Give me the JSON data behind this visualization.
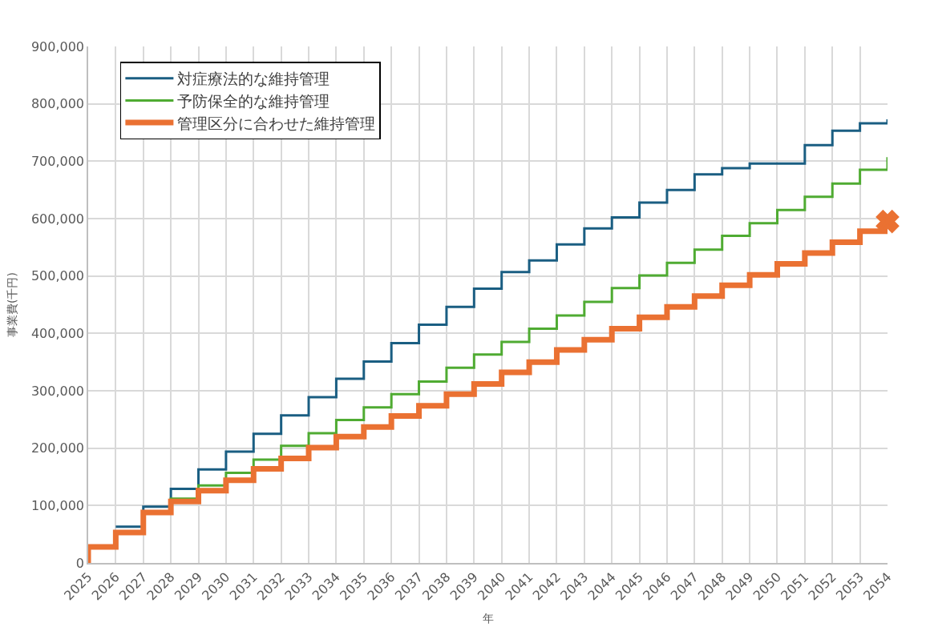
{
  "chart_data": {
    "type": "step",
    "xlabel": "年",
    "ylabel": "事業費(千円)",
    "x": [
      2025,
      2025,
      2026,
      2027,
      2028,
      2029,
      2030,
      2031,
      2032,
      2033,
      2034,
      2035,
      2036,
      2037,
      2038,
      2039,
      2040,
      2041,
      2042,
      2043,
      2044,
      2045,
      2046,
      2047,
      2048,
      2049,
      2050,
      2051,
      2052,
      2053,
      2054
    ],
    "series": [
      {
        "name": "対症療法的な維持管理",
        "color": "#1a5e82",
        "values": [
          null,
          null,
          63000,
          98000,
          129000,
          163000,
          194000,
          225000,
          257000,
          289000,
          321000,
          351000,
          383000,
          415000,
          446000,
          478000,
          507000,
          527000,
          555000,
          583000,
          602000,
          628000,
          650000,
          677000,
          688000,
          696000,
          696000,
          728000,
          753000,
          766000,
          773000
        ]
      },
      {
        "name": "予防保全的な維持管理",
        "color": "#4fab32",
        "values": [
          null,
          null,
          null,
          89000,
          112000,
          135000,
          157000,
          180000,
          204000,
          226000,
          249000,
          271000,
          294000,
          316000,
          340000,
          363000,
          385000,
          408000,
          431000,
          455000,
          479000,
          501000,
          523000,
          546000,
          570000,
          592000,
          615000,
          638000,
          661000,
          685000,
          707000
        ]
      },
      {
        "name": "管理区分に合わせた維持管理",
        "color": "#ea7132",
        "values": [
          0,
          28000,
          53000,
          88000,
          107000,
          126000,
          144000,
          164000,
          182000,
          201000,
          220000,
          237000,
          256000,
          274000,
          294000,
          312000,
          332000,
          350000,
          371000,
          389000,
          408000,
          428000,
          446000,
          465000,
          484000,
          502000,
          521000,
          540000,
          559000,
          578000,
          595000
        ]
      },
      {
        "type": "scatter",
        "x": [
          2054
        ],
        "color": "#ea7132",
        "marker": "cross",
        "values": [
          595000
        ]
      }
    ],
    "xlim": [
      2025,
      2054
    ],
    "xticks": [
      2025,
      2026,
      2027,
      2028,
      2029,
      2030,
      2031,
      2032,
      2033,
      2034,
      2035,
      2036,
      2037,
      2038,
      2039,
      2040,
      2041,
      2042,
      2043,
      2044,
      2045,
      2046,
      2047,
      2048,
      2049,
      2050,
      2051,
      2052,
      2053,
      2054
    ],
    "ylim": [
      0,
      900000
    ],
    "yticks": [
      {
        "value": 0,
        "label": "0"
      },
      {
        "value": 100000,
        "label": "100,000"
      },
      {
        "value": 200000,
        "label": "200,000"
      },
      {
        "value": 300000,
        "label": "300,000"
      },
      {
        "value": 400000,
        "label": "400,000"
      },
      {
        "value": 500000,
        "label": "500,000"
      },
      {
        "value": 600000,
        "label": "600,000"
      },
      {
        "value": 700000,
        "label": "700,000"
      },
      {
        "value": 800000,
        "label": "800,000"
      },
      {
        "value": 900000,
        "label": "900,000"
      }
    ],
    "grid": true,
    "legend": "top left"
  }
}
